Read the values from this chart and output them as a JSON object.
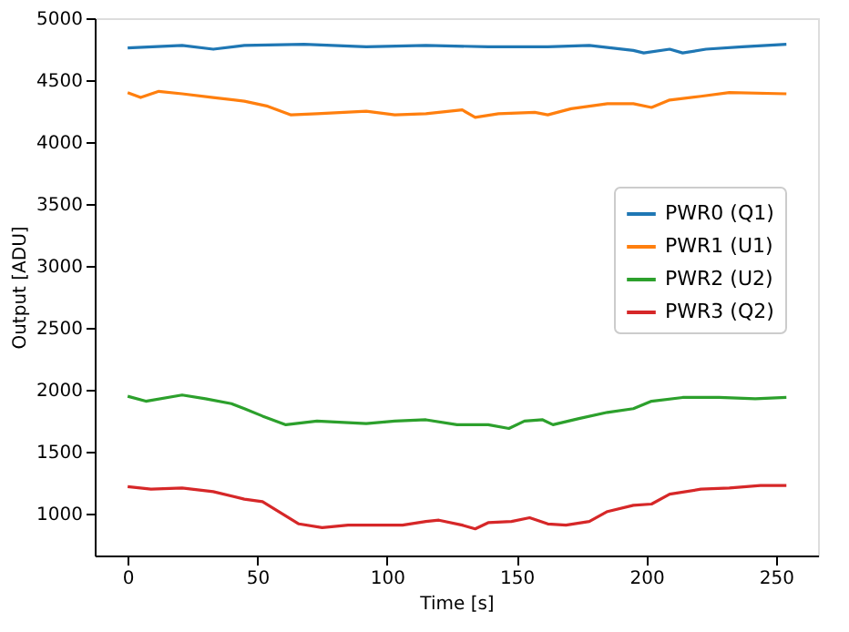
{
  "chart_data": {
    "type": "line",
    "xlabel": "Time [s]",
    "ylabel": "Output [ADU]",
    "xlim": [
      -12.7,
      266.2
    ],
    "xticks": [
      0,
      50,
      100,
      150,
      200,
      250
    ],
    "ylim": [
      665,
      5000
    ],
    "yticks": [
      1000,
      1500,
      2000,
      2500,
      3000,
      3500,
      4000,
      4500,
      5000
    ],
    "grid": false,
    "legend": "right",
    "line_style": "solid",
    "marker": "none",
    "series": [
      {
        "name": "PWR0 (Q1)",
        "color": "#1f77b4",
        "x": [
          0,
          21,
          33,
          45,
          68,
          92,
          115,
          139,
          162,
          178,
          195,
          199,
          209,
          214,
          223,
          237,
          254
        ],
        "values": [
          4760,
          4780,
          4750,
          4780,
          4790,
          4770,
          4780,
          4770,
          4770,
          4780,
          4740,
          4720,
          4750,
          4720,
          4750,
          4770,
          4790
        ]
      },
      {
        "name": "PWR1 (U1)",
        "color": "#ff7f0e",
        "x": [
          0,
          5,
          12,
          21,
          33,
          45,
          54,
          63,
          73,
          92,
          103,
          115,
          129,
          134,
          143,
          157,
          162,
          171,
          185,
          195,
          202,
          209,
          221,
          232,
          254
        ],
        "values": [
          4400,
          4360,
          4410,
          4390,
          4360,
          4330,
          4290,
          4220,
          4230,
          4250,
          4220,
          4230,
          4260,
          4200,
          4230,
          4240,
          4220,
          4270,
          4310,
          4310,
          4280,
          4340,
          4370,
          4400,
          4390
        ]
      },
      {
        "name": "PWR2 (U2)",
        "color": "#2ca02c",
        "x": [
          0,
          7,
          21,
          30,
          40,
          45,
          52,
          61,
          73,
          92,
          103,
          115,
          127,
          139,
          147,
          153,
          160,
          164,
          174,
          185,
          195,
          202,
          214,
          228,
          242,
          254
        ],
        "values": [
          1950,
          1910,
          1960,
          1930,
          1890,
          1850,
          1790,
          1720,
          1750,
          1730,
          1750,
          1760,
          1720,
          1720,
          1690,
          1750,
          1760,
          1720,
          1770,
          1820,
          1850,
          1910,
          1940,
          1940,
          1930,
          1940
        ]
      },
      {
        "name": "PWR3 (Q2)",
        "color": "#d62728",
        "x": [
          0,
          9,
          21,
          33,
          45,
          52,
          59,
          66,
          75,
          85,
          96,
          106,
          115,
          120,
          129,
          134,
          139,
          148,
          155,
          162,
          169,
          178,
          185,
          195,
          202,
          209,
          221,
          232,
          244,
          254
        ],
        "values": [
          1220,
          1200,
          1210,
          1180,
          1120,
          1100,
          1010,
          920,
          890,
          910,
          910,
          910,
          940,
          950,
          910,
          880,
          930,
          940,
          970,
          920,
          910,
          940,
          1020,
          1070,
          1080,
          1160,
          1200,
          1210,
          1230,
          1230
        ]
      }
    ]
  }
}
